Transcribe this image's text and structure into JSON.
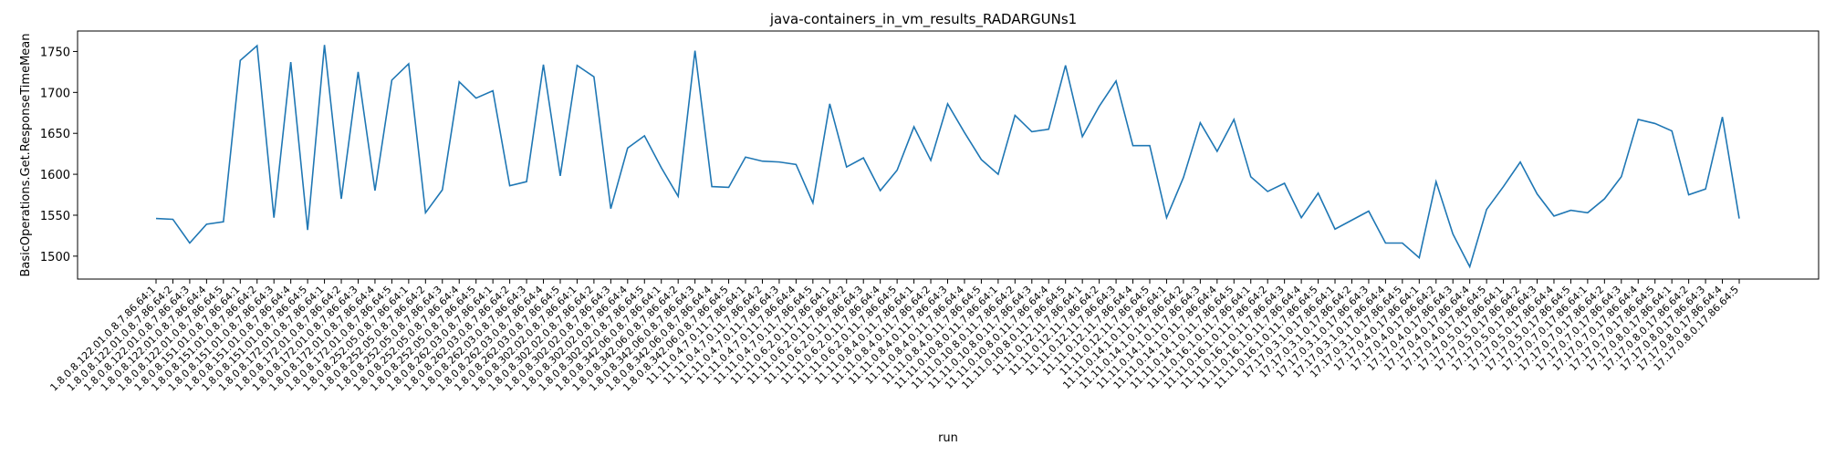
{
  "chart_data": {
    "type": "line",
    "title": "java-containers_in_vm_results_RADARGUNs1",
    "xlabel": "run",
    "ylabel": "BasicOperations.Get.ResponseTimeMean",
    "ylim": [
      1472,
      1775
    ],
    "yticks": [
      1500,
      1550,
      1600,
      1650,
      1700,
      1750
    ],
    "grid": false,
    "legend": "none",
    "line_color": "#1f77b4",
    "x": [
      "1.8.0.8.122.01.0.8.7.86.64:1",
      "1.8.0.8.122.01.0.8.7.86.64:2",
      "1.8.0.8.122.01.0.8.7.86.64:3",
      "1.8.0.8.122.01.0.8.7.86.64:4",
      "1.8.0.8.122.01.0.8.7.86.64:5",
      "1.8.0.8.151.01.0.8.7.86.64:1",
      "1.8.0.8.151.01.0.8.7.86.64:2",
      "1.8.0.8.151.01.0.8.7.86.64:3",
      "1.8.0.8.151.01.0.8.7.86.64:4",
      "1.8.0.8.151.01.0.8.7.86.64:5",
      "1.8.0.8.172.01.0.8.7.86.64:1",
      "1.8.0.8.172.01.0.8.7.86.64:2",
      "1.8.0.8.172.01.0.8.7.86.64:3",
      "1.8.0.8.172.01.0.8.7.86.64:4",
      "1.8.0.8.172.01.0.8.7.86.64:5",
      "1.8.0.8.252.05.0.8.7.86.64:1",
      "1.8.0.8.252.05.0.8.7.86.64:2",
      "1.8.0.8.252.05.0.8.7.86.64:3",
      "1.8.0.8.252.05.0.8.7.86.64:4",
      "1.8.0.8.252.05.0.8.7.86.64:5",
      "1.8.0.8.262.03.0.8.7.86.64:1",
      "1.8.0.8.262.03.0.8.7.86.64:2",
      "1.8.0.8.262.03.0.8.7.86.64:3",
      "1.8.0.8.262.03.0.8.7.86.64:4",
      "1.8.0.8.262.03.0.8.7.86.64:5",
      "1.8.0.8.302.02.0.8.7.86.64:1",
      "1.8.0.8.302.02.0.8.7.86.64:2",
      "1.8.0.8.302.02.0.8.7.86.64:3",
      "1.8.0.8.302.02.0.8.7.86.64:4",
      "1.8.0.8.302.02.0.8.7.86.64:5",
      "1.8.0.8.342.06.0.8.7.86.64:1",
      "1.8.0.8.342.06.0.8.7.86.64:2",
      "1.8.0.8.342.06.0.8.7.86.64:3",
      "1.8.0.8.342.06.0.8.7.86.64:4",
      "1.8.0.8.342.06.0.8.7.86.64:5",
      "11.11.0.4.7.0.11.7.86.64:1",
      "11.11.0.4.7.0.11.7.86.64:2",
      "11.11.0.4.7.0.11.7.86.64:3",
      "11.11.0.4.7.0.11.7.86.64:4",
      "11.11.0.4.7.0.11.7.86.64:5",
      "11.11.0.6.2.0.11.7.86.64:1",
      "11.11.0.6.2.0.11.7.86.64:2",
      "11.11.0.6.2.0.11.7.86.64:3",
      "11.11.0.6.2.0.11.7.86.64:4",
      "11.11.0.6.2.0.11.7.86.64:5",
      "11.11.0.8.4.0.11.7.86.64:1",
      "11.11.0.8.4.0.11.7.86.64:2",
      "11.11.0.8.4.0.11.7.86.64:3",
      "11.11.0.8.4.0.11.7.86.64:4",
      "11.11.0.8.4.0.11.7.86.64:5",
      "11.11.0.10.8.0.11.7.86.64:1",
      "11.11.0.10.8.0.11.7.86.64:2",
      "11.11.0.10.8.0.11.7.86.64:3",
      "11.11.0.10.8.0.11.7.86.64:4",
      "11.11.0.10.8.0.11.7.86.64:5",
      "11.11.0.12.11.7.86.64:1",
      "11.11.0.12.11.7.86.64:2",
      "11.11.0.12.11.7.86.64:3",
      "11.11.0.12.11.7.86.64:4",
      "11.11.0.12.11.7.86.64:5",
      "11.11.0.14.1.0.11.7.86.64:1",
      "11.11.0.14.1.0.11.7.86.64:2",
      "11.11.0.14.1.0.11.7.86.64:3",
      "11.11.0.14.1.0.11.7.86.64:4",
      "11.11.0.14.1.0.11.7.86.64:5",
      "11.11.0.16.1.0.11.7.86.64:1",
      "11.11.0.16.1.0.11.7.86.64:2",
      "11.11.0.16.1.0.11.7.86.64:3",
      "11.11.0.16.1.0.11.7.86.64:4",
      "11.11.0.16.1.0.11.7.86.64:5",
      "17.17.0.3.1.0.17.86.64:1",
      "17.17.0.3.1.0.17.86.64:2",
      "17.17.0.3.1.0.17.86.64:3",
      "17.17.0.3.1.0.17.86.64:4",
      "17.17.0.3.1.0.17.86.64:5",
      "17.17.0.4.0.17.86.64:1",
      "17.17.0.4.0.17.86.64:2",
      "17.17.0.4.0.17.86.64:3",
      "17.17.0.4.0.17.86.64:4",
      "17.17.0.4.0.17.86.64:5",
      "17.17.0.5.0.17.86.64:1",
      "17.17.0.5.0.17.86.64:2",
      "17.17.0.5.0.17.86.64:3",
      "17.17.0.5.0.17.86.64:4",
      "17.17.0.5.0.17.86.64:5",
      "17.17.0.7.0.17.86.64:1",
      "17.17.0.7.0.17.86.64:2",
      "17.17.0.7.0.17.86.64:3",
      "17.17.0.7.0.17.86.64:4",
      "17.17.0.7.0.17.86.64:5",
      "17.17.0.8.0.17.86.64:1",
      "17.17.0.8.0.17.86.64:2",
      "17.17.0.8.0.17.86.64:3",
      "17.17.0.8.0.17.86.64:4",
      "17.17.0.8.0.17.86.64:5"
    ],
    "series": [
      {
        "values": [
          1546,
          1545,
          1516,
          1539,
          1542,
          1739,
          1757,
          1547,
          1737,
          1532,
          1758,
          1570,
          1725,
          1580,
          1715,
          1735,
          1553,
          1581,
          1713,
          1693,
          1702,
          1586,
          1591,
          1734,
          1598,
          1733,
          1719,
          1558,
          1632,
          1647,
          1608,
          1573,
          1751,
          1585,
          1584,
          1621,
          1616,
          1615,
          1612,
          1565,
          1686,
          1609,
          1620,
          1580,
          1605,
          1658,
          1617,
          1686,
          1651,
          1618,
          1600,
          1672,
          1652,
          1655,
          1733,
          1646,
          1683,
          1714,
          1635,
          1635,
          1547,
          1596,
          1663,
          1628,
          1667,
          1597,
          1579,
          1589,
          1547,
          1577,
          1533,
          1544,
          1555,
          1516,
          1516,
          1498,
          1591,
          1527,
          1487,
          1557,
          1585,
          1615,
          1576,
          1549,
          1556,
          1553,
          1570,
          1597,
          1667,
          1662,
          1653,
          1575,
          1582,
          1670,
          1546
        ]
      }
    ]
  }
}
